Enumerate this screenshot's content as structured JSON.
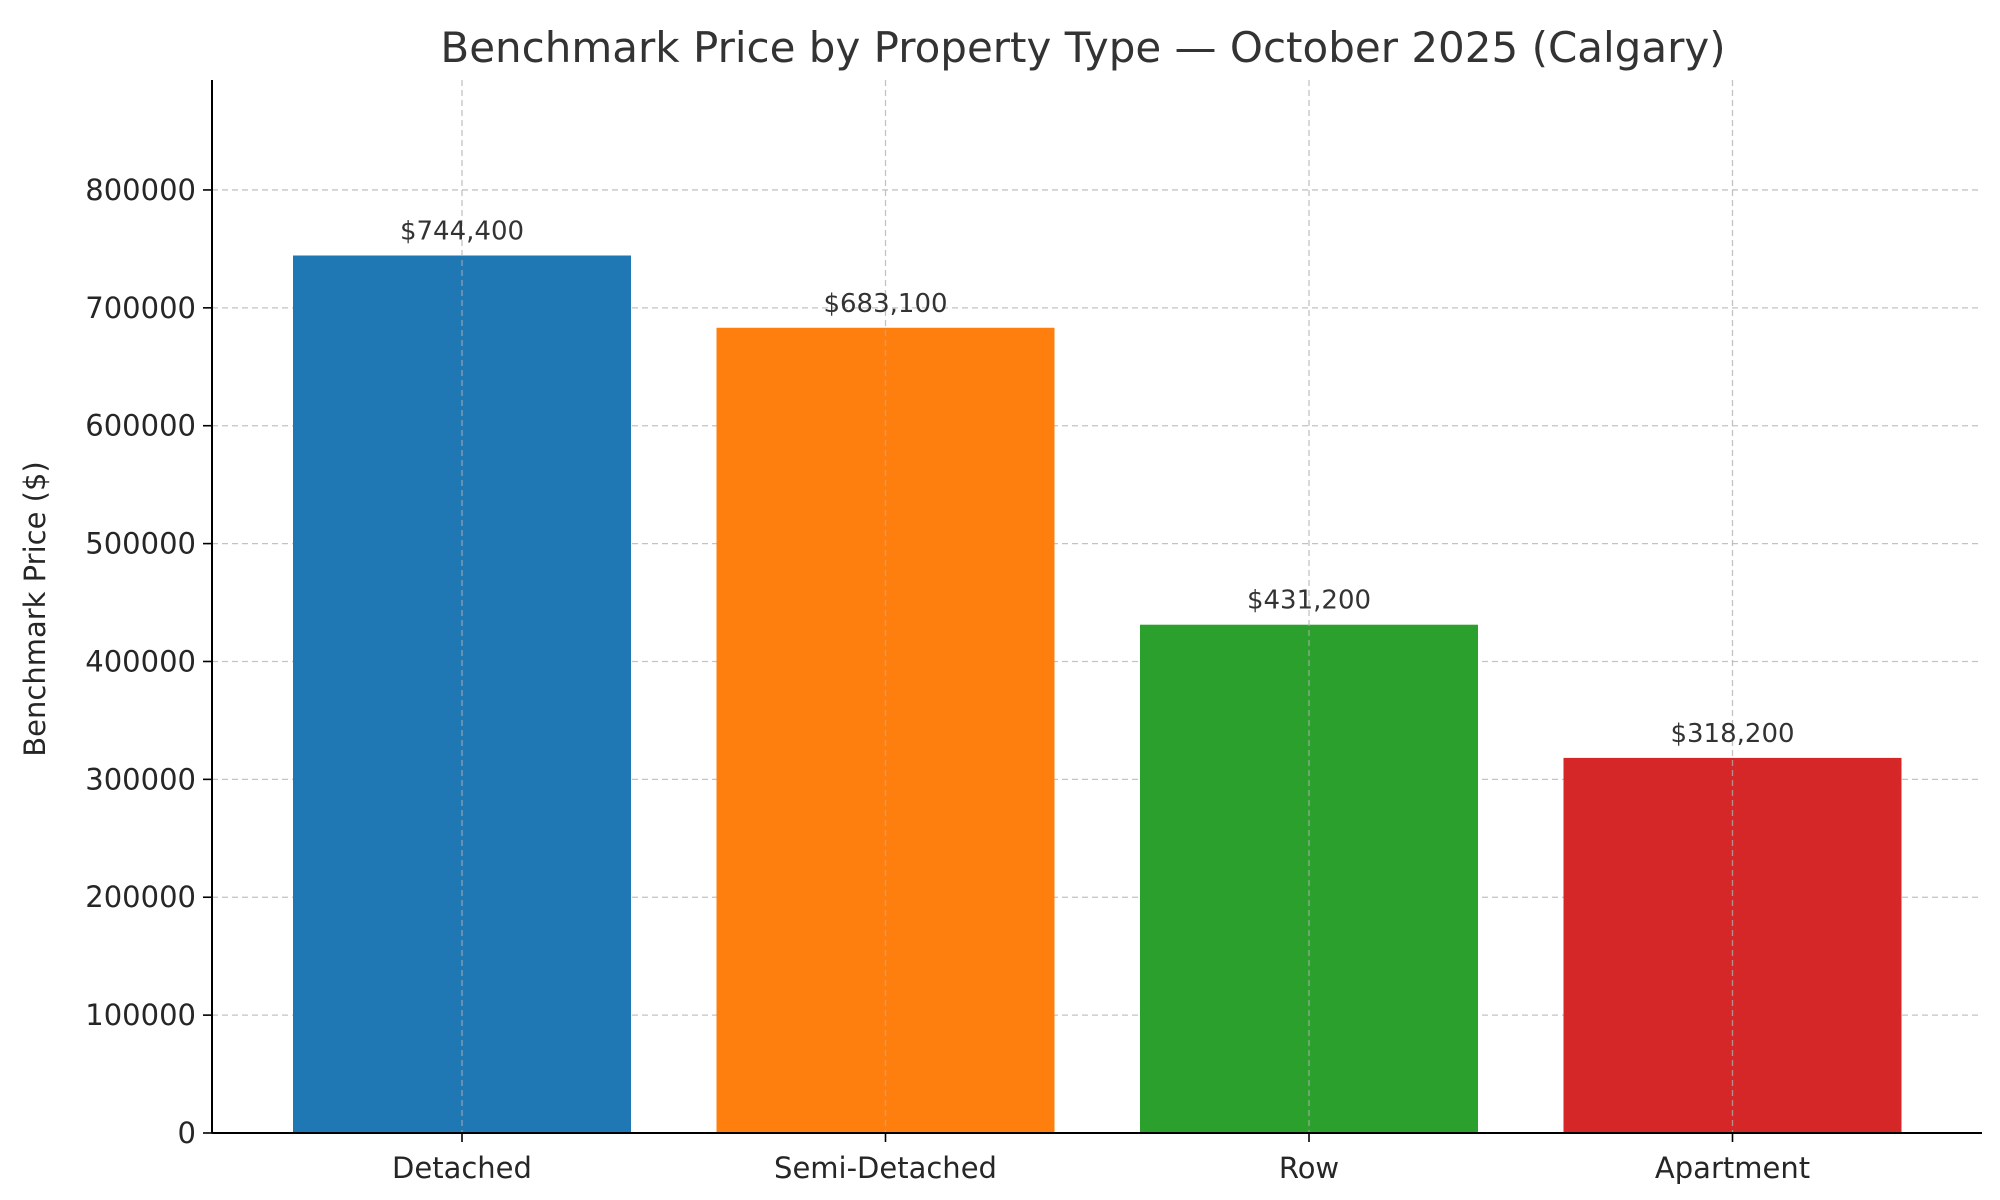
{
  "chart_data": {
    "type": "bar",
    "title": "Benchmark Price by Property Type — October 2025 (Calgary)",
    "xlabel": "",
    "ylabel": "Benchmark Price ($)",
    "categories": [
      "Detached",
      "Semi-Detached",
      "Row",
      "Apartment"
    ],
    "values": [
      744400,
      683100,
      431200,
      318200
    ],
    "data_labels": [
      "$744,400",
      "$683,100",
      "$431,200",
      "$318,200"
    ],
    "colors": [
      "#1f77b4",
      "#ff7f0e",
      "#2ca02c",
      "#d62728"
    ],
    "ylim": [
      0,
      893280
    ],
    "yticks": [
      0,
      100000,
      200000,
      300000,
      400000,
      500000,
      600000,
      700000,
      800000
    ],
    "ytick_labels": [
      "0",
      "100000",
      "200000",
      "300000",
      "400000",
      "500000",
      "600000",
      "700000",
      "800000"
    ],
    "grid": true,
    "legend": "none"
  }
}
